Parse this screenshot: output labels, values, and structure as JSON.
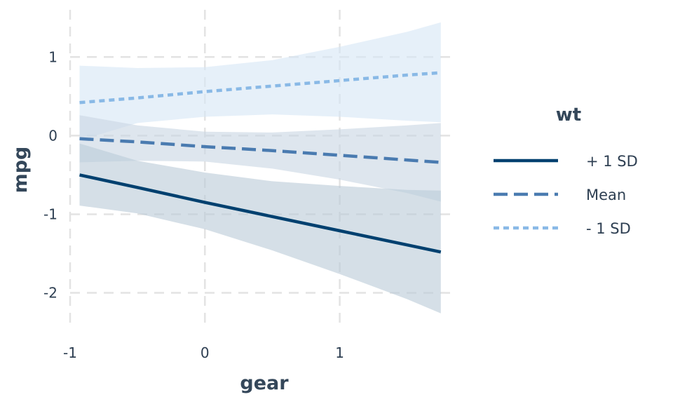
{
  "chart_data": {
    "type": "line",
    "xlabel": "gear",
    "ylabel": "mpg",
    "xlim": [
      -1.0,
      1.85
    ],
    "ylim": [
      -2.45,
      1.6
    ],
    "x_ticks": [
      -1,
      0,
      1
    ],
    "x_tick_labels": [
      "-1",
      "0",
      "1"
    ],
    "y_ticks": [
      1,
      0,
      -1,
      -2
    ],
    "y_tick_labels": [
      "1",
      "0",
      "-1",
      "-2"
    ],
    "grid": true,
    "grid_color": "#e3e3e3",
    "legend": {
      "title": "wt",
      "position": "right"
    },
    "x": [
      -0.93,
      -0.5,
      0.0,
      0.5,
      1.0,
      1.5,
      1.75
    ],
    "series": [
      {
        "name": "+ 1 SD",
        "color": "#00406f",
        "dash": "solid",
        "values": [
          -0.5,
          -0.66,
          -0.85,
          -1.03,
          -1.21,
          -1.39,
          -1.48
        ],
        "lower": [
          -0.89,
          -0.99,
          -1.19,
          -1.46,
          -1.76,
          -2.08,
          -2.26
        ],
        "upper": [
          -0.1,
          -0.32,
          -0.47,
          -0.58,
          -0.64,
          -0.69,
          -0.7
        ],
        "band_color": "#bccbd9"
      },
      {
        "name": "Mean",
        "color": "#4a7bb0",
        "dash": "dashed",
        "values": [
          -0.04,
          -0.08,
          -0.14,
          -0.19,
          -0.25,
          -0.31,
          -0.34
        ],
        "lower": [
          -0.34,
          -0.32,
          -0.33,
          -0.42,
          -0.56,
          -0.73,
          -0.84
        ],
        "upper": [
          0.26,
          0.13,
          0.05,
          0.04,
          0.08,
          0.13,
          0.16
        ],
        "band_color": "#c9d6e4"
      },
      {
        "name": "- 1 SD",
        "color": "#89b9e6",
        "dash": "dotted",
        "values": [
          0.42,
          0.48,
          0.56,
          0.63,
          0.7,
          0.77,
          0.8
        ],
        "lower": [
          -0.06,
          0.16,
          0.24,
          0.27,
          0.24,
          0.19,
          0.17
        ],
        "upper": [
          0.89,
          0.86,
          0.87,
          0.96,
          1.13,
          1.32,
          1.44
        ],
        "band_color": "#d7e7f6"
      }
    ]
  }
}
